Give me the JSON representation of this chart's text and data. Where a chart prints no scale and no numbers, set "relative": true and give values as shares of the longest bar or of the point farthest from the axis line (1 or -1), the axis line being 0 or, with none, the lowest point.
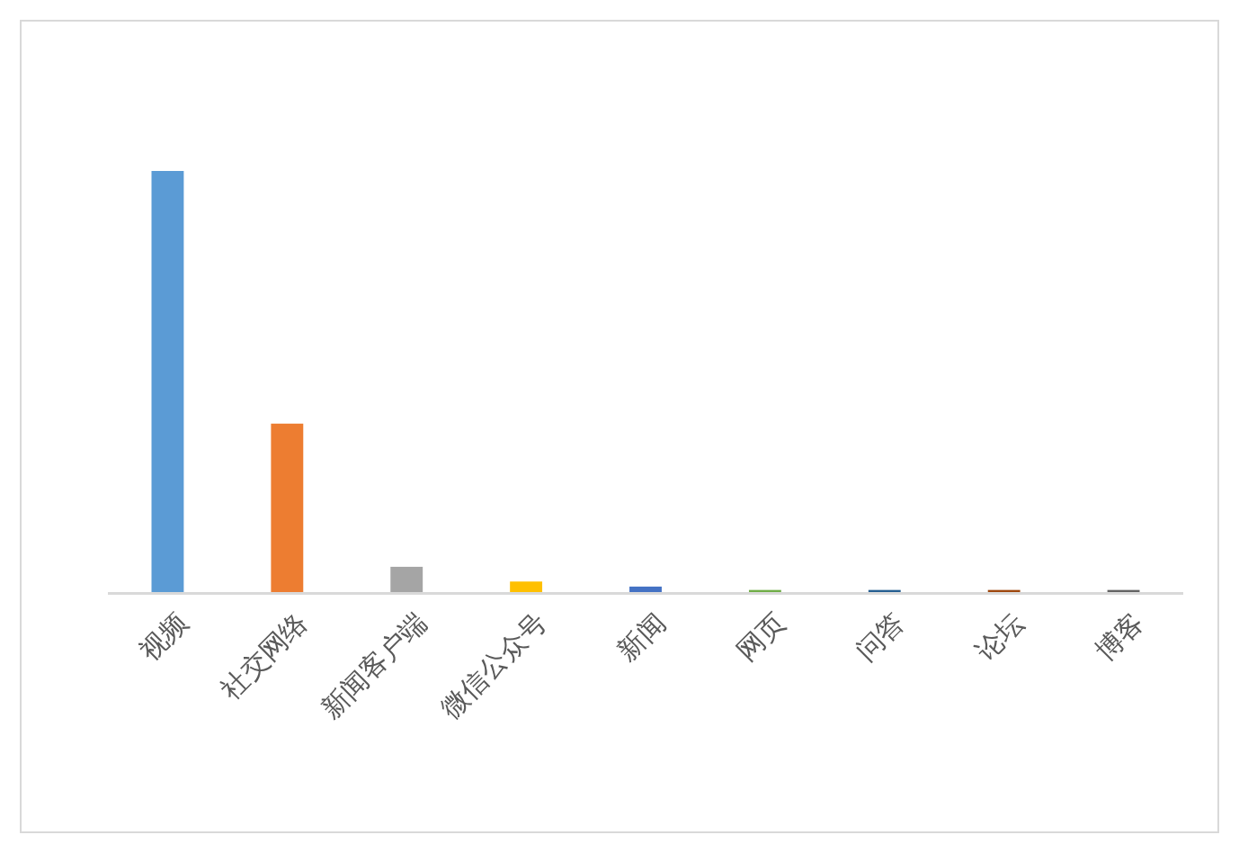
{
  "chart_data": {
    "type": "bar",
    "relative": true,
    "categories": [
      "视频",
      "社交网络",
      "新闻客户端",
      "微信公众号",
      "新闻",
      "网页",
      "问答",
      "论坛",
      "博客"
    ],
    "values": [
      1,
      0.4,
      0.06,
      0.025,
      0.013,
      0.005,
      0.005,
      0.005,
      0.005
    ],
    "colors": [
      "#5b9bd5",
      "#ed7d31",
      "#a5a5a5",
      "#ffc000",
      "#4472c4",
      "#70ad47",
      "#255e91",
      "#9e480e",
      "#636363"
    ]
  }
}
